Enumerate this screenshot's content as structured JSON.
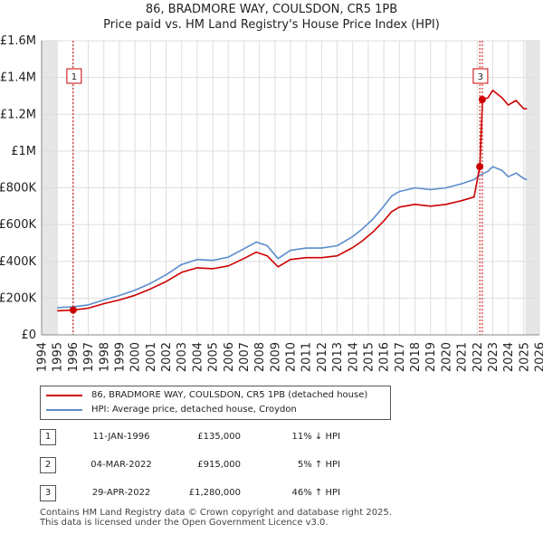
{
  "title": {
    "line1": "86, BRADMORE WAY, COULSDON, CR5 1PB",
    "line2": "Price paid vs. HM Land Registry's House Price Index (HPI)"
  },
  "chart_data": {
    "type": "line",
    "title": "86, BRADMORE WAY, COULSDON, CR5 1PB — Price paid vs. HM Land Registry's House Price Index (HPI)",
    "xlabel": "",
    "ylabel": "",
    "xlim": [
      1994,
      2026
    ],
    "ylim": [
      0,
      1600000
    ],
    "x_ticks": [
      1994,
      1995,
      1996,
      1997,
      1998,
      1999,
      2000,
      2001,
      2002,
      2003,
      2004,
      2005,
      2006,
      2007,
      2008,
      2009,
      2010,
      2011,
      2012,
      2013,
      2014,
      2015,
      2016,
      2017,
      2018,
      2019,
      2020,
      2021,
      2022,
      2023,
      2024,
      2025,
      2026
    ],
    "y_ticks": [
      {
        "value": 0,
        "label": "£0"
      },
      {
        "value": 200000,
        "label": "£200K"
      },
      {
        "value": 400000,
        "label": "£400K"
      },
      {
        "value": 600000,
        "label": "£600K"
      },
      {
        "value": 800000,
        "label": "£800K"
      },
      {
        "value": 1000000,
        "label": "£1M"
      },
      {
        "value": 1200000,
        "label": "£1.2M"
      },
      {
        "value": 1400000,
        "label": "£1.4M"
      },
      {
        "value": 1600000,
        "label": "£1.6M"
      }
    ],
    "grid": true,
    "shaded_ranges": [
      [
        1994,
        1995
      ],
      [
        2025.1,
        2026
      ]
    ],
    "series": [
      {
        "name": "86, BRADMORE WAY, COULSDON, CR5 1PB (detached house)",
        "color": "#cc0000",
        "x": [
          1995.0,
          1996.03,
          1997.0,
          1998.0,
          1999.0,
          2000.0,
          2001.0,
          2002.0,
          2003.0,
          2004.0,
          2005.0,
          2006.0,
          2007.0,
          2007.8,
          2008.5,
          2009.2,
          2010.0,
          2011.0,
          2012.0,
          2013.0,
          2014.0,
          2014.6,
          2015.3,
          2016.0,
          2016.5,
          2017.0,
          2018.0,
          2019.0,
          2020.0,
          2021.0,
          2021.8,
          2022.17,
          2022.17,
          2022.33,
          2022.33,
          2022.7,
          2023.0,
          2023.6,
          2024.0,
          2024.5,
          2025.0,
          2025.2
        ],
        "y": [
          131000,
          135000,
          145000,
          170000,
          190000,
          215000,
          250000,
          290000,
          340000,
          365000,
          360000,
          375000,
          415000,
          450000,
          430000,
          370000,
          410000,
          420000,
          420000,
          430000,
          475000,
          510000,
          560000,
          620000,
          670000,
          695000,
          710000,
          700000,
          710000,
          730000,
          750000,
          915000,
          915000,
          1240000,
          1280000,
          1290000,
          1330000,
          1290000,
          1250000,
          1275000,
          1230000,
          1230000
        ]
      },
      {
        "name": "HPI: Average price, detached house, Croydon",
        "color": "#5b8ccc",
        "x": [
          1995.0,
          1996.0,
          1997.0,
          1998.0,
          1999.0,
          2000.0,
          2001.0,
          2002.0,
          2003.0,
          2004.0,
          2005.0,
          2006.0,
          2007.0,
          2007.8,
          2008.5,
          2009.2,
          2010.0,
          2011.0,
          2012.0,
          2013.0,
          2014.0,
          2014.6,
          2015.3,
          2016.0,
          2016.5,
          2017.0,
          2018.0,
          2019.0,
          2020.0,
          2021.0,
          2021.8,
          2022.2,
          2022.7,
          2023.0,
          2023.6,
          2024.0,
          2024.5,
          2025.0,
          2025.2
        ],
        "y": [
          148000,
          152000,
          163000,
          190000,
          214000,
          243000,
          280000,
          327000,
          383000,
          410000,
          405000,
          423000,
          468000,
          505000,
          485000,
          415000,
          460000,
          472000,
          472000,
          485000,
          535000,
          575000,
          630000,
          700000,
          755000,
          780000,
          800000,
          790000,
          800000,
          822000,
          845000,
          870000,
          890000,
          915000,
          895000,
          860000,
          880000,
          850000,
          845000
        ]
      }
    ],
    "sales": [
      {
        "id": "1",
        "x": 1996.03,
        "value": 135000
      },
      {
        "id": "2",
        "x": 2022.17,
        "value": 915000
      },
      {
        "id": "3",
        "x": 2022.33,
        "value": 1280000
      }
    ]
  },
  "legend": {
    "items": [
      {
        "label": "86, BRADMORE WAY, COULSDON, CR5 1PB (detached house)",
        "color": "#cc0000"
      },
      {
        "label": "HPI: Average price, detached house, Croydon",
        "color": "#5b8ccc"
      }
    ]
  },
  "sales_table": [
    {
      "id": "1",
      "date": "11-JAN-1996",
      "price": "£135,000",
      "hpi": "11% ↓ HPI"
    },
    {
      "id": "2",
      "date": "04-MAR-2022",
      "price": "£915,000",
      "hpi": "5% ↑ HPI"
    },
    {
      "id": "3",
      "date": "29-APR-2022",
      "price": "£1,280,000",
      "hpi": "46% ↑ HPI"
    }
  ],
  "footer": {
    "line1": "Contains HM Land Registry data © Crown copyright and database right 2025.",
    "line2": "This data is licensed under the Open Government Licence v3.0."
  }
}
